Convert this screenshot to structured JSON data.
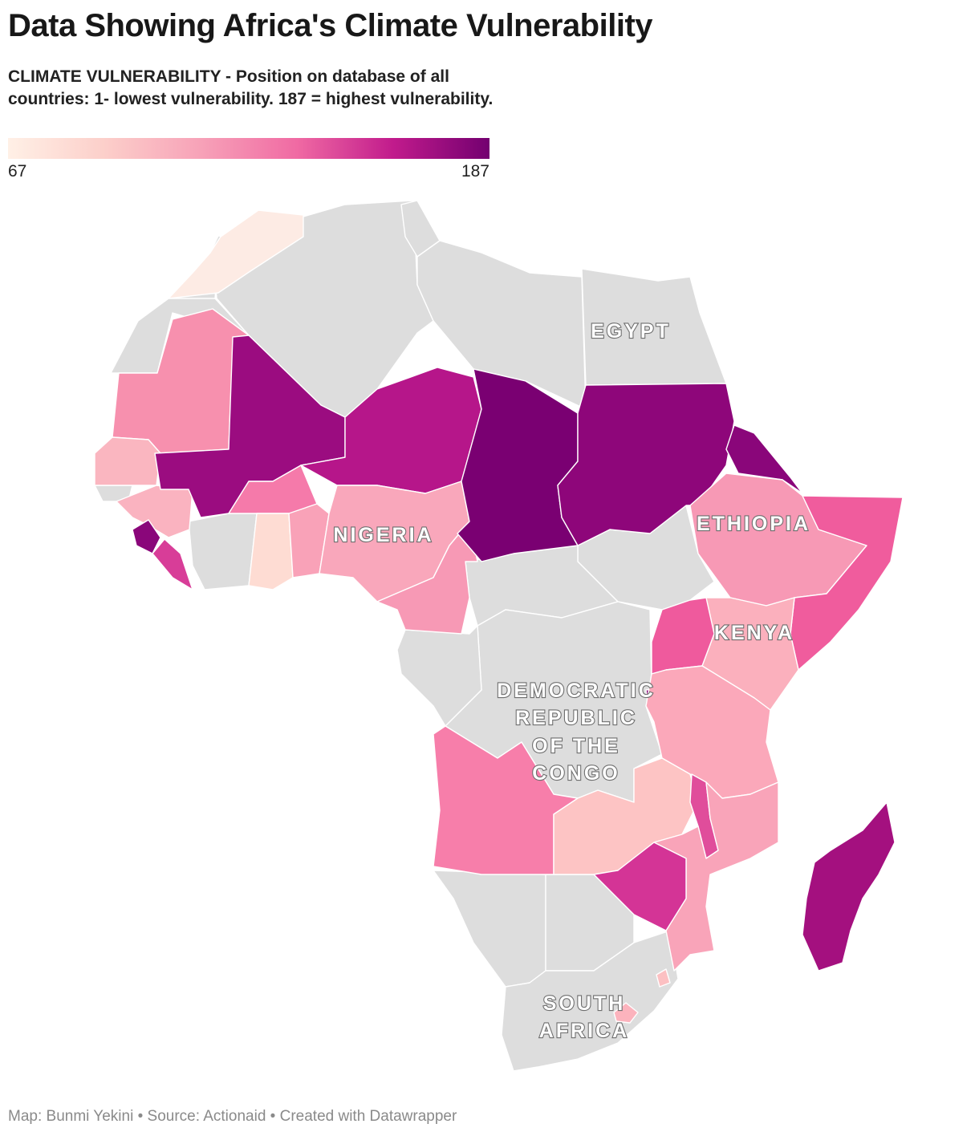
{
  "title": "Data Showing Africa's Climate Vulnerability",
  "subtitle": "CLIMATE VULNERABILITY - Position on database of all countries: 1- lowest vulnerability. 187 = highest vulnerability.",
  "legend": {
    "min_label": "67",
    "max_label": "187",
    "gradient_colors": [
      "#fff0e6",
      "#fccfca",
      "#f7a2b8",
      "#f06aa3",
      "#c11b8c",
      "#730070"
    ]
  },
  "map": {
    "no_data_color": "#dddddd",
    "labels": {
      "egypt": "EGYPT",
      "ethiopia": "ETHIOPIA",
      "nigeria": "NIGERIA",
      "kenya": "KENYA",
      "drc_line1": "DEMOCRATIC",
      "drc_line2": "REPUBLIC",
      "drc_line3": "OF THE",
      "drc_line4": "CONGO",
      "south_africa_line1": "SOUTH",
      "south_africa_line2": "AFRICA"
    },
    "country_colors": {
      "morocco": "#fdebe4",
      "mauritania": "#f790ae",
      "senegal": "#fab6c0",
      "guinea": "#fab3c0",
      "sierra_leone": "#8a067a",
      "liberia": "#d83d98",
      "mali": "#9b0c80",
      "burkina_faso": "#f57aaa",
      "ghana": "#fedcd3",
      "togo_benin": "#f9a2b8",
      "niger": "#b6168a",
      "nigeria": "#f9a7bb",
      "cameroon": "#f799b5",
      "chad": "#7a0072",
      "sudan": "#8e067a",
      "eritrea": "#8a067a",
      "ethiopia": "#f799b5",
      "somalia": "#f05c9d",
      "kenya": "#fbb0bd",
      "uganda": "#ef5a9d",
      "burundi": "#8a067a",
      "tanzania": "#fba8ba",
      "angola": "#f77eaa",
      "zambia": "#fdc4c4",
      "malawi": "#e04d9b",
      "mozambique": "#f9a4b9",
      "zimbabwe": "#d43496",
      "madagascar": "#a4107f",
      "swaziland": "#fcc0c2",
      "lesotho": "#fcb3bd"
    }
  },
  "footer": "Map: Bunmi Yekini • Source: Actionaid • Created with Datawrapper"
}
